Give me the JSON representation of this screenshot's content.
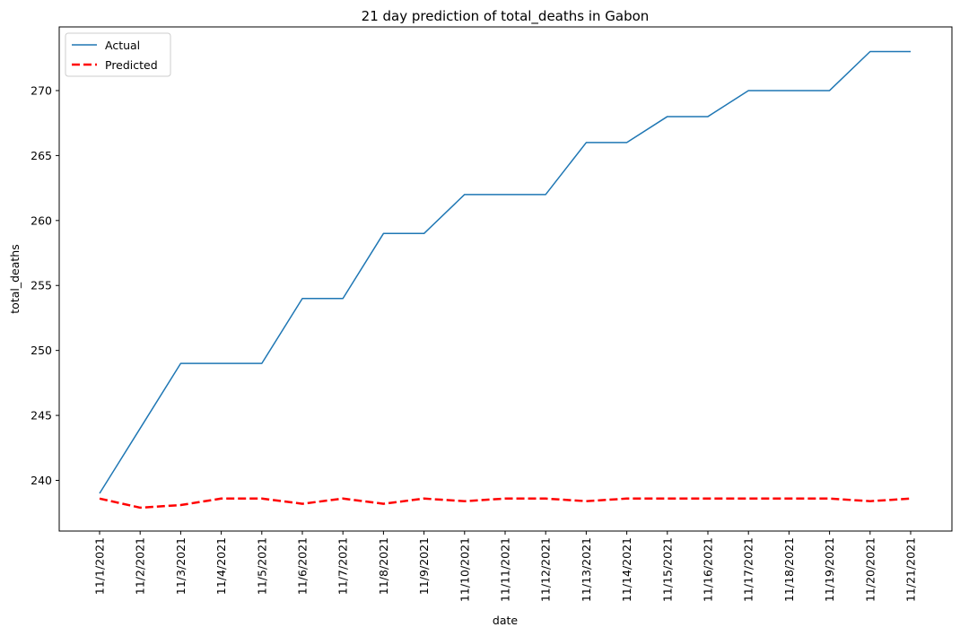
{
  "chart_data": {
    "type": "line",
    "title": "21 day prediction of total_deaths in Gabon",
    "xlabel": "date",
    "ylabel": "total_deaths",
    "categories": [
      "11/1/2021",
      "11/2/2021",
      "11/3/2021",
      "11/4/2021",
      "11/5/2021",
      "11/6/2021",
      "11/7/2021",
      "11/8/2021",
      "11/9/2021",
      "11/10/2021",
      "11/11/2021",
      "11/12/2021",
      "11/13/2021",
      "11/14/2021",
      "11/15/2021",
      "11/16/2021",
      "11/17/2021",
      "11/18/2021",
      "11/19/2021",
      "11/20/2021",
      "11/21/2021"
    ],
    "yticks": [
      240,
      245,
      250,
      255,
      260,
      265,
      270
    ],
    "ylim": [
      236.1,
      274.9
    ],
    "grid": false,
    "legend_position": "top-left",
    "series": [
      {
        "name": "Actual",
        "color": "#1f77b4",
        "dash": "solid",
        "values": [
          239,
          244,
          249,
          249,
          249,
          254,
          254,
          259,
          259,
          262,
          262,
          262,
          266,
          266,
          268,
          268,
          270,
          270,
          270,
          273,
          273
        ]
      },
      {
        "name": "Predicted",
        "color": "#ff0000",
        "dash": "dashed",
        "values": [
          238.6,
          237.9,
          238.1,
          238.6,
          238.6,
          238.2,
          238.6,
          238.2,
          238.6,
          238.4,
          238.6,
          238.6,
          238.4,
          238.6,
          238.6,
          238.6,
          238.6,
          238.6,
          238.6,
          238.4,
          238.6
        ]
      }
    ]
  }
}
